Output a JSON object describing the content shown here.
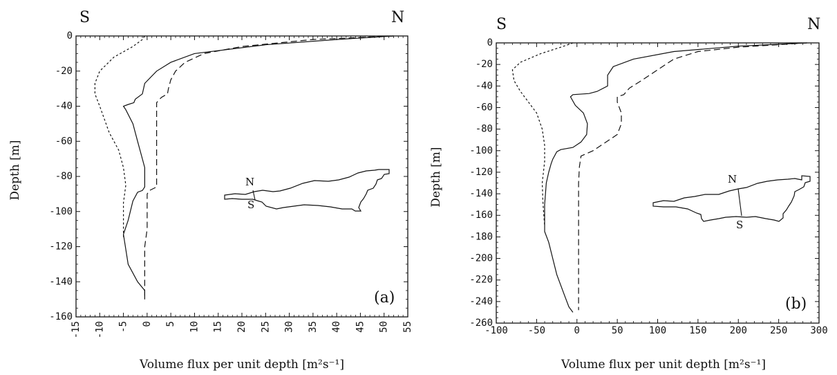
{
  "chart_data": [
    {
      "type": "line",
      "panel_label": "(a)",
      "corner_left": "S",
      "corner_right": "N",
      "xlabel": "Volume flux per unit depth [m²s⁻¹]",
      "ylabel": "Depth [m]",
      "xlim": [
        -15,
        55
      ],
      "ylim": [
        -160,
        0
      ],
      "xticks": [
        -15,
        -10,
        -5,
        0,
        5,
        10,
        15,
        20,
        25,
        30,
        35,
        40,
        45,
        50,
        55
      ],
      "yticks": [
        0,
        -20,
        -40,
        -60,
        -80,
        -100,
        -120,
        -140,
        -160
      ],
      "tick_labels_rotated": true,
      "inset": {
        "label_n": "N",
        "label_s": "S"
      },
      "series": [
        {
          "style": "solid",
          "points": [
            [
              52,
              0
            ],
            [
              40,
              -2
            ],
            [
              25,
              -5
            ],
            [
              10,
              -10
            ],
            [
              5,
              -15
            ],
            [
              2,
              -20
            ],
            [
              -0.5,
              -27
            ],
            [
              -1,
              -33
            ],
            [
              -2.5,
              -36
            ],
            [
              -2.8,
              -38
            ],
            [
              -4,
              -39
            ],
            [
              -5,
              -40
            ],
            [
              -4.5,
              -42
            ],
            [
              -3,
              -50
            ],
            [
              -2,
              -60
            ],
            [
              -1,
              -70
            ],
            [
              -0.5,
              -75
            ],
            [
              -0.5,
              -86
            ],
            [
              -1,
              -88
            ],
            [
              -2,
              -89
            ],
            [
              -3,
              -94
            ],
            [
              -4,
              -105
            ],
            [
              -5,
              -113
            ],
            [
              -4,
              -130
            ],
            [
              -2,
              -140
            ],
            [
              -0.5,
              -145
            ],
            [
              -0.5,
              -150
            ]
          ]
        },
        {
          "style": "dashed",
          "points": [
            [
              52,
              0
            ],
            [
              35,
              -2
            ],
            [
              20,
              -6
            ],
            [
              12,
              -10
            ],
            [
              8,
              -15
            ],
            [
              6,
              -20
            ],
            [
              5,
              -25
            ],
            [
              4.5,
              -30
            ],
            [
              4.3,
              -33
            ],
            [
              3,
              -35
            ],
            [
              2,
              -38
            ],
            [
              2,
              -45
            ],
            [
              2,
              -60
            ],
            [
              2,
              -80
            ],
            [
              2,
              -86
            ],
            [
              0.5,
              -88
            ],
            [
              0,
              -90
            ],
            [
              0,
              -100
            ],
            [
              0,
              -110
            ],
            [
              -0.5,
              -120
            ],
            [
              -0.5,
              -140
            ],
            [
              -0.5,
              -150
            ]
          ]
        },
        {
          "style": "dotted",
          "points": [
            [
              -0.5,
              0
            ],
            [
              -1,
              -2
            ],
            [
              -3,
              -6
            ],
            [
              -7,
              -12
            ],
            [
              -10,
              -20
            ],
            [
              -11,
              -27
            ],
            [
              -11,
              -33
            ],
            [
              -10,
              -40
            ],
            [
              -8,
              -55
            ],
            [
              -6,
              -65
            ],
            [
              -5,
              -75
            ],
            [
              -4.5,
              -85
            ],
            [
              -5,
              -95
            ],
            [
              -5,
              -105
            ],
            [
              -5,
              -115
            ]
          ]
        }
      ]
    },
    {
      "type": "line",
      "panel_label": "(b)",
      "corner_left": "S",
      "corner_right": "N",
      "xlabel": "Volume flux per unit depth [m²s⁻¹]",
      "ylabel": "Depth [m]",
      "xlim": [
        -100,
        300
      ],
      "ylim": [
        -260,
        0
      ],
      "xticks": [
        -100,
        -50,
        0,
        50,
        100,
        150,
        200,
        250,
        300
      ],
      "yticks": [
        0,
        -20,
        -40,
        -60,
        -80,
        -100,
        -120,
        -140,
        -160,
        -180,
        -200,
        -220,
        -240,
        -260
      ],
      "tick_labels_rotated": false,
      "inset": {
        "label_n": "N",
        "label_s": "S"
      },
      "series": [
        {
          "style": "solid",
          "points": [
            [
              285,
              0
            ],
            [
              200,
              -3
            ],
            [
              120,
              -8
            ],
            [
              70,
              -15
            ],
            [
              45,
              -22
            ],
            [
              38,
              -30
            ],
            [
              38,
              -40
            ],
            [
              25,
              -45
            ],
            [
              15,
              -47
            ],
            [
              -5,
              -48
            ],
            [
              -8,
              -50
            ],
            [
              -2,
              -58
            ],
            [
              8,
              -65
            ],
            [
              13,
              -75
            ],
            [
              12,
              -85
            ],
            [
              5,
              -92
            ],
            [
              -5,
              -97
            ],
            [
              -20,
              -99
            ],
            [
              -25,
              -101
            ],
            [
              -30,
              -108
            ],
            [
              -32,
              -112
            ],
            [
              -35,
              -120
            ],
            [
              -38,
              -130
            ],
            [
              -40,
              -150
            ],
            [
              -40,
              -175
            ],
            [
              -35,
              -185
            ],
            [
              -30,
              -200
            ],
            [
              -25,
              -215
            ],
            [
              -15,
              -235
            ],
            [
              -10,
              -245
            ],
            [
              -5,
              -250
            ]
          ]
        },
        {
          "style": "dashed",
          "points": [
            [
              285,
              0
            ],
            [
              200,
              -4
            ],
            [
              150,
              -8
            ],
            [
              120,
              -15
            ],
            [
              100,
              -25
            ],
            [
              80,
              -35
            ],
            [
              65,
              -42
            ],
            [
              58,
              -48
            ],
            [
              50,
              -50
            ],
            [
              50,
              -55
            ],
            [
              55,
              -65
            ],
            [
              55,
              -75
            ],
            [
              50,
              -85
            ],
            [
              30,
              -95
            ],
            [
              20,
              -100
            ],
            [
              5,
              -105
            ],
            [
              3,
              -115
            ],
            [
              2,
              -130
            ],
            [
              2,
              -150
            ],
            [
              2,
              -200
            ],
            [
              2,
              -248
            ]
          ]
        },
        {
          "style": "dotted",
          "points": [
            [
              -5,
              0
            ],
            [
              -20,
              -4
            ],
            [
              -45,
              -10
            ],
            [
              -70,
              -18
            ],
            [
              -80,
              -25
            ],
            [
              -78,
              -35
            ],
            [
              -70,
              -45
            ],
            [
              -60,
              -55
            ],
            [
              -50,
              -65
            ],
            [
              -43,
              -80
            ],
            [
              -40,
              -95
            ],
            [
              -40,
              -110
            ],
            [
              -43,
              -130
            ],
            [
              -42,
              -150
            ],
            [
              -40,
              -170
            ]
          ]
        }
      ]
    }
  ]
}
